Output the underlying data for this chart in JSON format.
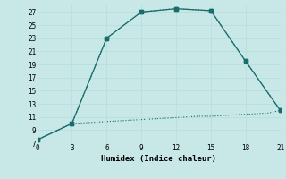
{
  "xlabel": "Humidex (Indice chaleur)",
  "bg_color": "#c8e8e8",
  "grid_color": "#d8eeee",
  "line_color": "#1a6b6b",
  "xlim": [
    0,
    21
  ],
  "ylim": [
    7,
    28
  ],
  "xticks": [
    0,
    3,
    6,
    9,
    12,
    15,
    18,
    21
  ],
  "yticks": [
    7,
    9,
    11,
    13,
    15,
    17,
    19,
    21,
    23,
    25,
    27
  ],
  "line1_x": [
    0,
    3,
    4,
    5,
    6,
    7,
    8,
    9,
    10,
    11,
    12,
    13,
    14,
    15,
    16,
    17,
    18,
    19,
    20,
    21
  ],
  "line1_y": [
    7.5,
    10.0,
    10.1,
    10.2,
    10.3,
    10.4,
    10.5,
    10.6,
    10.7,
    10.8,
    10.9,
    11.0,
    11.1,
    11.1,
    11.2,
    11.3,
    11.4,
    11.5,
    11.6,
    12.0
  ],
  "line2_x": [
    0,
    3,
    6,
    9,
    12,
    15,
    18,
    21
  ],
  "line2_y": [
    7.5,
    10.0,
    23.0,
    27.0,
    27.5,
    27.2,
    19.5,
    12.0
  ],
  "marker2_x": [
    3,
    6,
    9,
    12,
    15,
    18,
    21
  ],
  "marker2_y": [
    10.0,
    23.0,
    27.0,
    27.5,
    27.2,
    19.5,
    12.0
  ]
}
